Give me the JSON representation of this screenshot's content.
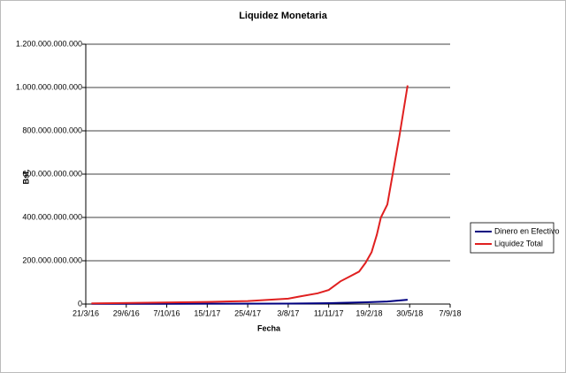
{
  "chart_data": {
    "type": "line",
    "title": "Liquidez Monetaria",
    "x_label": "Fecha",
    "y_label": "Bsf.",
    "x_scale": "date",
    "xlim": [
      "2016-03-21",
      "2018-09-07"
    ],
    "xticks": [
      {
        "value": "2016-03-21",
        "label": "21/3/16"
      },
      {
        "value": "2016-06-29",
        "label": "29/6/16"
      },
      {
        "value": "2016-10-07",
        "label": "7/10/16"
      },
      {
        "value": "2017-01-15",
        "label": "15/1/17"
      },
      {
        "value": "2017-04-25",
        "label": "25/4/17"
      },
      {
        "value": "2017-08-03",
        "label": "3/8/17"
      },
      {
        "value": "2017-11-11",
        "label": "11/11/17"
      },
      {
        "value": "2018-02-19",
        "label": "19/2/18"
      },
      {
        "value": "2018-05-30",
        "label": "30/5/18"
      },
      {
        "value": "2018-09-07",
        "label": "7/9/18"
      }
    ],
    "ylim": [
      0,
      1200000000000
    ],
    "yticks": [
      {
        "value": 0,
        "label": "0"
      },
      {
        "value": 200000000000,
        "label": "200.000.000.000"
      },
      {
        "value": 400000000000,
        "label": "400.000.000.000"
      },
      {
        "value": 600000000000,
        "label": "600.000.000.000"
      },
      {
        "value": 800000000000,
        "label": "800.000.000.000"
      },
      {
        "value": 1000000000000,
        "label": "1.000.000.000.000"
      },
      {
        "value": 1200000000000,
        "label": "1.200.000.000.000"
      }
    ],
    "grid": true,
    "legend": "right",
    "series": [
      {
        "name": "Dinero en Efectivo",
        "color": "#000080",
        "x": [
          "2016-04-04",
          "2016-10-01",
          "2017-01-15",
          "2017-08-01",
          "2017-11-11",
          "2018-02-10",
          "2018-04-05",
          "2018-05-25"
        ],
        "values": [
          1000000000,
          1200000000,
          1500000000,
          2000000000,
          4000000000,
          8000000000,
          12000000000,
          20000000000
        ]
      },
      {
        "name": "Liquidez Total",
        "color": "#e02020",
        "x": [
          "2016-04-04",
          "2016-10-01",
          "2017-01-15",
          "2017-04-25",
          "2017-08-03",
          "2017-09-01",
          "2017-10-15",
          "2017-11-11",
          "2017-12-10",
          "2018-01-05",
          "2018-01-25",
          "2018-02-10",
          "2018-02-25",
          "2018-03-10",
          "2018-03-20",
          "2018-04-05",
          "2018-04-20",
          "2018-05-05",
          "2018-05-25"
        ],
        "values": [
          3000000000,
          7000000000,
          10000000000,
          14000000000,
          25000000000,
          35000000000,
          50000000000,
          65000000000,
          105000000000,
          130000000000,
          150000000000,
          190000000000,
          240000000000,
          320000000000,
          400000000000,
          460000000000,
          620000000000,
          780000000000,
          1010000000000
        ]
      }
    ]
  }
}
